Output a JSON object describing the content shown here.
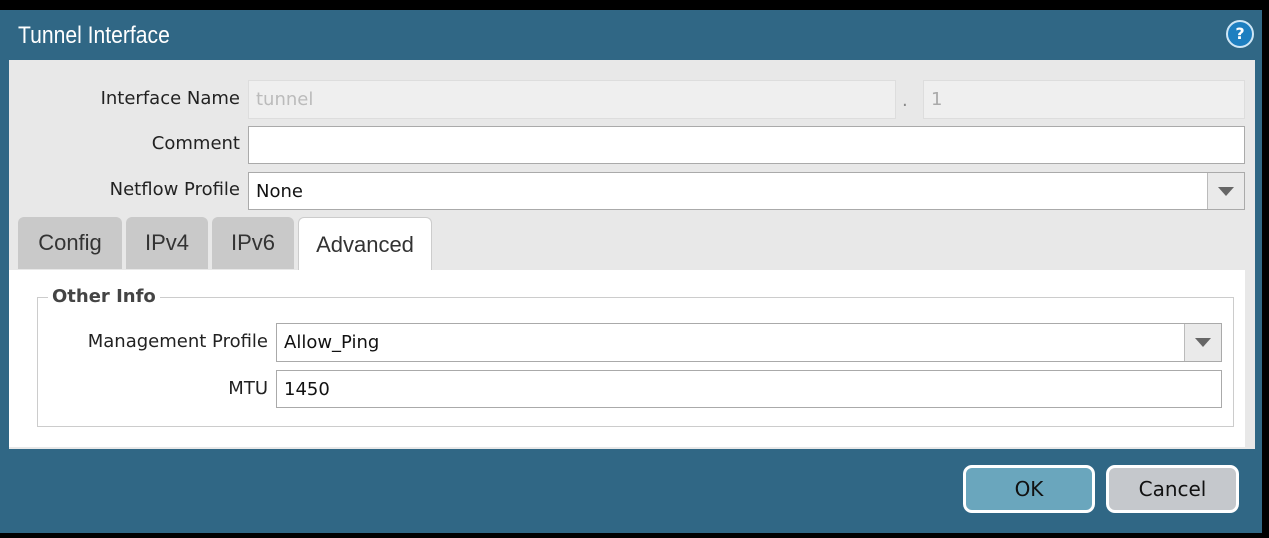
{
  "dialog": {
    "title": "Tunnel Interface",
    "help_icon": "help-icon"
  },
  "form": {
    "interface_name": {
      "label": "Interface Name",
      "value": "tunnel",
      "separator": ".",
      "suffix": "1"
    },
    "comment": {
      "label": "Comment",
      "value": ""
    },
    "netflow_profile": {
      "label": "Netflow Profile",
      "value": "None"
    }
  },
  "tabs": [
    {
      "label": "Config"
    },
    {
      "label": "IPv4"
    },
    {
      "label": "IPv6"
    },
    {
      "label": "Advanced",
      "active": true
    }
  ],
  "advanced": {
    "section": "Other Info",
    "management_profile": {
      "label": "Management Profile",
      "value": "Allow_Ping"
    },
    "mtu": {
      "label": "MTU",
      "value": "1450"
    }
  },
  "buttons": {
    "ok": "OK",
    "cancel": "Cancel"
  }
}
